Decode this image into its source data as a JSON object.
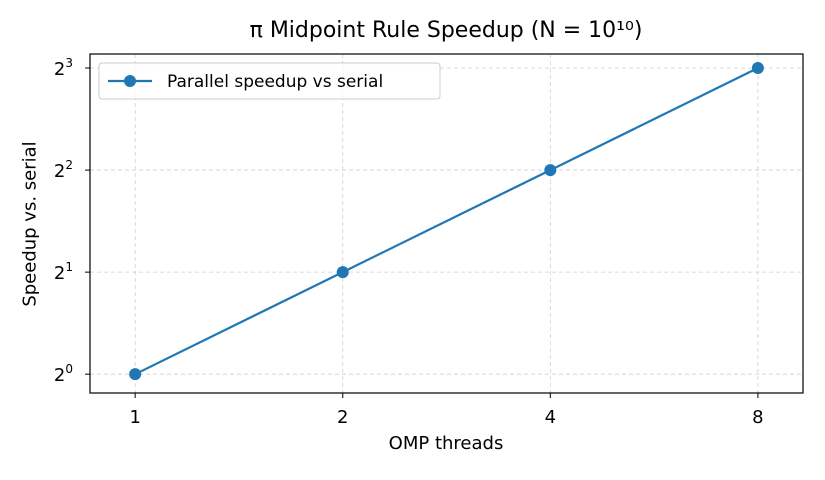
{
  "chart_data": {
    "type": "line",
    "title": "π Midpoint Rule Speedup (N = 10¹⁰)",
    "xlabel": "OMP threads",
    "ylabel": "Speedup vs. serial",
    "x_scale": "log2",
    "y_scale": "log2",
    "xlim": [
      0.86,
      9.3
    ],
    "ylim": [
      0.88,
      8.8
    ],
    "x_ticks": [
      1,
      2,
      4,
      8
    ],
    "x_tick_labels": [
      "1",
      "2",
      "4",
      "8"
    ],
    "y_ticks": [
      1,
      2,
      4,
      8
    ],
    "y_tick_labels": [
      {
        "base": "2",
        "exp": "0"
      },
      {
        "base": "2",
        "exp": "1"
      },
      {
        "base": "2",
        "exp": "2"
      },
      {
        "base": "2",
        "exp": "3"
      }
    ],
    "grid": true,
    "legend_position": "top-left",
    "series": [
      {
        "name": "Parallel speedup vs serial",
        "color": "#1f77b4",
        "marker": "circle",
        "x": [
          1,
          2,
          4,
          8
        ],
        "y": [
          1.0,
          2.0,
          4.0,
          8.0
        ]
      }
    ]
  }
}
